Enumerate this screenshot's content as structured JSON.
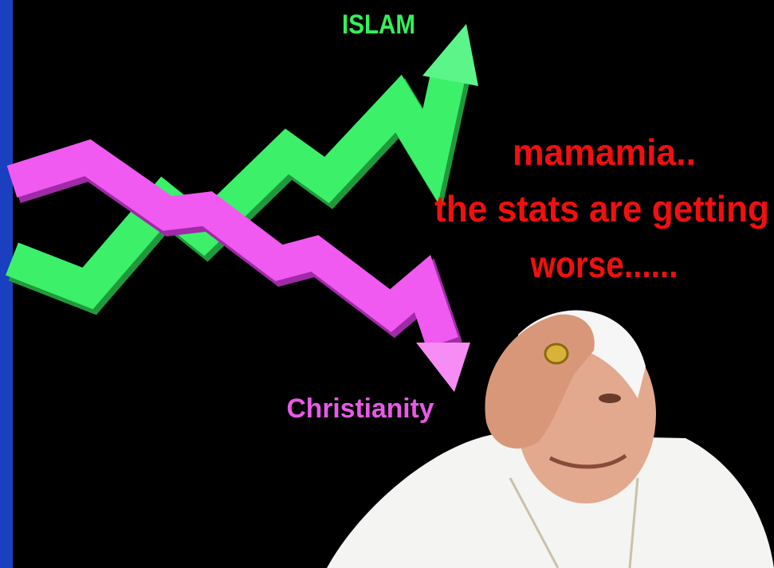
{
  "labels": {
    "islam": "ISLAM",
    "christianity": "Christianity"
  },
  "caption": [
    "mamamia..",
    "the stats are getting",
    "worse......"
  ]
}
